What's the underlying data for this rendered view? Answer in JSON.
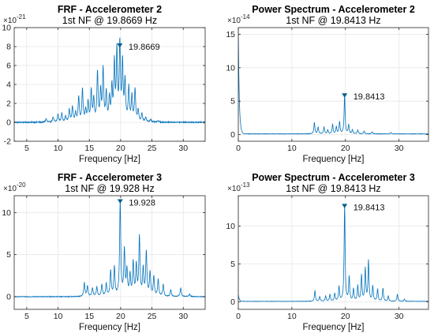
{
  "chart_data": [
    {
      "type": "line",
      "title": "FRF - Accelerometer 2",
      "subtitle": "1st NF @ 19.8669 Hz",
      "xlabel": "Frequency [Hz]",
      "ylabel": "",
      "exponent_label": "×10",
      "exponent_power": "-21",
      "xlim": [
        3,
        33.5
      ],
      "ylim": [
        -2,
        10
      ],
      "xticks": [
        5,
        10,
        15,
        20,
        25,
        30
      ],
      "yticks": [
        -2,
        0,
        2,
        4,
        6,
        8,
        10
      ],
      "grid": true,
      "color": "#0072BD",
      "baseline": 0,
      "noise": 0.06,
      "peaks": [
        {
          "x": 8.1,
          "y": 0.35
        },
        {
          "x": 9.2,
          "y": 0.5
        },
        {
          "x": 10.0,
          "y": 0.8
        },
        {
          "x": 10.6,
          "y": 0.9
        },
        {
          "x": 11.2,
          "y": 0.6
        },
        {
          "x": 11.8,
          "y": 1.3
        },
        {
          "x": 12.3,
          "y": 1.6
        },
        {
          "x": 12.8,
          "y": 1.0
        },
        {
          "x": 13.3,
          "y": 2.6
        },
        {
          "x": 13.9,
          "y": 3.4
        },
        {
          "x": 14.4,
          "y": 1.2
        },
        {
          "x": 14.8,
          "y": 2.0
        },
        {
          "x": 15.3,
          "y": 3.3
        },
        {
          "x": 15.7,
          "y": 2.3
        },
        {
          "x": 16.3,
          "y": 5.2
        },
        {
          "x": 16.8,
          "y": 3.1
        },
        {
          "x": 17.2,
          "y": 5.5
        },
        {
          "x": 17.7,
          "y": 3.0
        },
        {
          "x": 18.2,
          "y": 2.4
        },
        {
          "x": 18.6,
          "y": 3.5
        },
        {
          "x": 19.0,
          "y": 6.0
        },
        {
          "x": 19.4,
          "y": 7.2
        },
        {
          "x": 19.8669,
          "y": 8.0
        },
        {
          "x": 20.3,
          "y": 6.1
        },
        {
          "x": 20.7,
          "y": 4.2
        },
        {
          "x": 21.3,
          "y": 3.6
        },
        {
          "x": 21.8,
          "y": 2.7
        },
        {
          "x": 22.3,
          "y": 3.4
        },
        {
          "x": 22.8,
          "y": 1.2
        },
        {
          "x": 23.4,
          "y": 0.9
        },
        {
          "x": 24.0,
          "y": 0.5
        },
        {
          "x": 24.8,
          "y": 0.3
        },
        {
          "x": 26.0,
          "y": 0.15
        }
      ],
      "peak": {
        "x": 19.8669,
        "y": 8.0,
        "label": "19.8669"
      }
    },
    {
      "type": "line",
      "title": "Power Spectrum - Accelerometer 2",
      "subtitle": "1st NF @ 19.8413 Hz",
      "xlabel": "Frequency [Hz]",
      "ylabel": "",
      "exponent_label": "×10",
      "exponent_power": "-14",
      "xlim": [
        0,
        35.5
      ],
      "ylim": [
        -1,
        16
      ],
      "xticks": [
        0,
        10,
        20,
        30
      ],
      "yticks": [
        0,
        5,
        10,
        15
      ],
      "grid": true,
      "color": "#0072BD",
      "baseline": 0.1,
      "noise": 0.03,
      "dc": 15.5,
      "peaks": [
        {
          "x": 14.2,
          "y": 1.7
        },
        {
          "x": 14.9,
          "y": 1.0
        },
        {
          "x": 16.0,
          "y": 1.0
        },
        {
          "x": 16.7,
          "y": 0.6
        },
        {
          "x": 17.6,
          "y": 1.4
        },
        {
          "x": 18.3,
          "y": 1.0
        },
        {
          "x": 18.9,
          "y": 1.8
        },
        {
          "x": 19.8413,
          "y": 5.7
        },
        {
          "x": 20.6,
          "y": 1.3
        },
        {
          "x": 21.3,
          "y": 0.6
        },
        {
          "x": 22.3,
          "y": 0.6
        },
        {
          "x": 23.5,
          "y": 0.4
        },
        {
          "x": 25.0,
          "y": 0.3
        },
        {
          "x": 28.5,
          "y": 0.2
        }
      ],
      "peak": {
        "x": 19.8413,
        "y": 5.7,
        "label": "19.8413"
      }
    },
    {
      "type": "line",
      "title": "FRF - Accelerometer 3",
      "subtitle": "1st NF @ 19.928 Hz",
      "xlabel": "Frequency [Hz]",
      "ylabel": "",
      "exponent_label": "×10",
      "exponent_power": "-20",
      "xlim": [
        3,
        33.5
      ],
      "ylim": [
        -1.5,
        12
      ],
      "xticks": [
        5,
        10,
        15,
        20,
        25,
        30
      ],
      "yticks": [
        0,
        5,
        10
      ],
      "grid": true,
      "color": "#0072BD",
      "baseline": 0,
      "noise": 0.04,
      "peaks": [
        {
          "x": 14.2,
          "y": 1.6
        },
        {
          "x": 14.7,
          "y": 1.2
        },
        {
          "x": 15.5,
          "y": 1.0
        },
        {
          "x": 16.2,
          "y": 1.1
        },
        {
          "x": 17.0,
          "y": 1.4
        },
        {
          "x": 17.7,
          "y": 1.5
        },
        {
          "x": 18.4,
          "y": 3.0
        },
        {
          "x": 19.0,
          "y": 3.4
        },
        {
          "x": 19.928,
          "y": 11.2
        },
        {
          "x": 20.6,
          "y": 5.4
        },
        {
          "x": 21.0,
          "y": 3.0
        },
        {
          "x": 21.5,
          "y": 2.5
        },
        {
          "x": 22.0,
          "y": 4.0
        },
        {
          "x": 22.5,
          "y": 3.6
        },
        {
          "x": 23.0,
          "y": 7.0
        },
        {
          "x": 23.6,
          "y": 3.2
        },
        {
          "x": 24.1,
          "y": 5.2
        },
        {
          "x": 24.7,
          "y": 2.8
        },
        {
          "x": 25.3,
          "y": 2.3
        },
        {
          "x": 26.0,
          "y": 2.0
        },
        {
          "x": 26.8,
          "y": 1.4
        },
        {
          "x": 28.0,
          "y": 0.8
        },
        {
          "x": 29.6,
          "y": 1.0
        },
        {
          "x": 31.0,
          "y": 0.3
        }
      ],
      "peak": {
        "x": 19.928,
        "y": 11.2,
        "label": "19.928"
      }
    },
    {
      "type": "line",
      "title": "Power Spectrum - Accelerometer 3",
      "subtitle": "1st NF @ 19.8413 Hz",
      "xlabel": "Frequency [Hz]",
      "ylabel": "",
      "exponent_label": "×10",
      "exponent_power": "-13",
      "xlim": [
        0,
        35.5
      ],
      "ylim": [
        -1,
        14
      ],
      "xticks": [
        0,
        10,
        20,
        30
      ],
      "yticks": [
        0,
        5,
        10
      ],
      "grid": true,
      "color": "#0072BD",
      "baseline": 0.05,
      "noise": 0.02,
      "dc": 0.9,
      "peaks": [
        {
          "x": 14.3,
          "y": 1.4
        },
        {
          "x": 15.2,
          "y": 0.6
        },
        {
          "x": 16.3,
          "y": 0.7
        },
        {
          "x": 17.1,
          "y": 0.9
        },
        {
          "x": 18.0,
          "y": 1.0
        },
        {
          "x": 18.8,
          "y": 1.9
        },
        {
          "x": 19.8413,
          "y": 12.5
        },
        {
          "x": 20.7,
          "y": 3.2
        },
        {
          "x": 21.5,
          "y": 1.6
        },
        {
          "x": 22.3,
          "y": 2.0
        },
        {
          "x": 23.0,
          "y": 3.4
        },
        {
          "x": 23.7,
          "y": 4.3
        },
        {
          "x": 24.3,
          "y": 5.3
        },
        {
          "x": 25.1,
          "y": 2.0
        },
        {
          "x": 26.0,
          "y": 1.6
        },
        {
          "x": 27.0,
          "y": 1.7
        },
        {
          "x": 28.0,
          "y": 0.7
        },
        {
          "x": 29.7,
          "y": 0.9
        },
        {
          "x": 31.0,
          "y": 0.3
        }
      ],
      "peak": {
        "x": 19.8413,
        "y": 12.5,
        "label": "19.8413"
      }
    }
  ]
}
